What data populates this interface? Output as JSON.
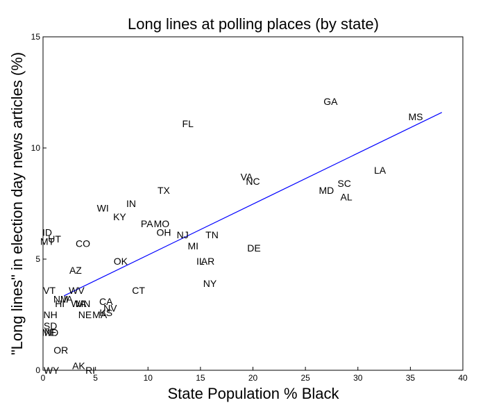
{
  "chart_data": {
    "type": "scatter",
    "title": "Long lines at polling places (by state)",
    "xlabel": "State Population % Black",
    "ylabel": "\"Long lines\" in election day news articles (%)",
    "xlim": [
      0,
      40
    ],
    "ylim": [
      0,
      15
    ],
    "xticks": [
      0,
      5,
      10,
      15,
      20,
      25,
      30,
      35,
      40
    ],
    "yticks": [
      0,
      5,
      10,
      15
    ],
    "grid": false,
    "marker": "state-abbreviation-text",
    "points": [
      {
        "label": "GA",
        "x": 27.4,
        "y": 12.1
      },
      {
        "label": "MS",
        "x": 35.5,
        "y": 11.4
      },
      {
        "label": "FL",
        "x": 13.8,
        "y": 11.1
      },
      {
        "label": "LA",
        "x": 32.1,
        "y": 9.0
      },
      {
        "label": "VA",
        "x": 19.4,
        "y": 8.7
      },
      {
        "label": "NC",
        "x": 20.0,
        "y": 8.5
      },
      {
        "label": "SC",
        "x": 28.7,
        "y": 8.4
      },
      {
        "label": "MD",
        "x": 27.0,
        "y": 8.1
      },
      {
        "label": "AL",
        "x": 28.9,
        "y": 7.8
      },
      {
        "label": "TX",
        "x": 11.5,
        "y": 8.1
      },
      {
        "label": "IN",
        "x": 8.4,
        "y": 7.5
      },
      {
        "label": "WI",
        "x": 5.7,
        "y": 7.3
      },
      {
        "label": "KY",
        "x": 7.3,
        "y": 6.9
      },
      {
        "label": "PA",
        "x": 9.9,
        "y": 6.6
      },
      {
        "label": "MO",
        "x": 11.3,
        "y": 6.6
      },
      {
        "label": "OH",
        "x": 11.5,
        "y": 6.2
      },
      {
        "label": "NJ",
        "x": 13.3,
        "y": 6.1
      },
      {
        "label": "TN",
        "x": 16.1,
        "y": 6.1
      },
      {
        "label": "MI",
        "x": 14.3,
        "y": 5.6
      },
      {
        "label": "DE",
        "x": 20.1,
        "y": 5.5
      },
      {
        "label": "ID",
        "x": 0.4,
        "y": 6.2
      },
      {
        "label": "MT",
        "x": 0.4,
        "y": 5.8
      },
      {
        "label": "UT",
        "x": 1.1,
        "y": 5.9
      },
      {
        "label": "CO",
        "x": 3.8,
        "y": 5.7
      },
      {
        "label": "OK",
        "x": 7.4,
        "y": 4.9
      },
      {
        "label": "IL",
        "x": 15.0,
        "y": 4.9
      },
      {
        "label": "AR",
        "x": 15.7,
        "y": 4.9
      },
      {
        "label": "AZ",
        "x": 3.1,
        "y": 4.5
      },
      {
        "label": "NY",
        "x": 15.9,
        "y": 3.9
      },
      {
        "label": "VT",
        "x": 0.6,
        "y": 3.6
      },
      {
        "label": "WV",
        "x": 3.2,
        "y": 3.6
      },
      {
        "label": "CT",
        "x": 9.1,
        "y": 3.6
      },
      {
        "label": "NM",
        "x": 1.7,
        "y": 3.2
      },
      {
        "label": "IA",
        "x": 2.4,
        "y": 3.2
      },
      {
        "label": "HI",
        "x": 1.6,
        "y": 3.0
      },
      {
        "label": "WA",
        "x": 3.4,
        "y": 3.0
      },
      {
        "label": "MN",
        "x": 3.8,
        "y": 3.0
      },
      {
        "label": "CA",
        "x": 6.0,
        "y": 3.1
      },
      {
        "label": "NV",
        "x": 6.4,
        "y": 2.8
      },
      {
        "label": "KS",
        "x": 6.0,
        "y": 2.6
      },
      {
        "label": "MA",
        "x": 5.4,
        "y": 2.5
      },
      {
        "label": "NE",
        "x": 4.0,
        "y": 2.5
      },
      {
        "label": "NH",
        "x": 0.7,
        "y": 2.5
      },
      {
        "label": "SD",
        "x": 0.7,
        "y": 2.0
      },
      {
        "label": "ME",
        "x": 0.6,
        "y": 1.7
      },
      {
        "label": "ND",
        "x": 0.8,
        "y": 1.7
      },
      {
        "label": "OR",
        "x": 1.7,
        "y": 0.9
      },
      {
        "label": "AK",
        "x": 3.4,
        "y": 0.2
      },
      {
        "label": "RI",
        "x": 4.5,
        "y": 0.0
      },
      {
        "label": "WY",
        "x": 0.8,
        "y": 0.0
      }
    ],
    "trendline": {
      "x1": 2.0,
      "y1": 3.35,
      "x2": 38.0,
      "y2": 11.6,
      "color": "#0000ff"
    }
  }
}
